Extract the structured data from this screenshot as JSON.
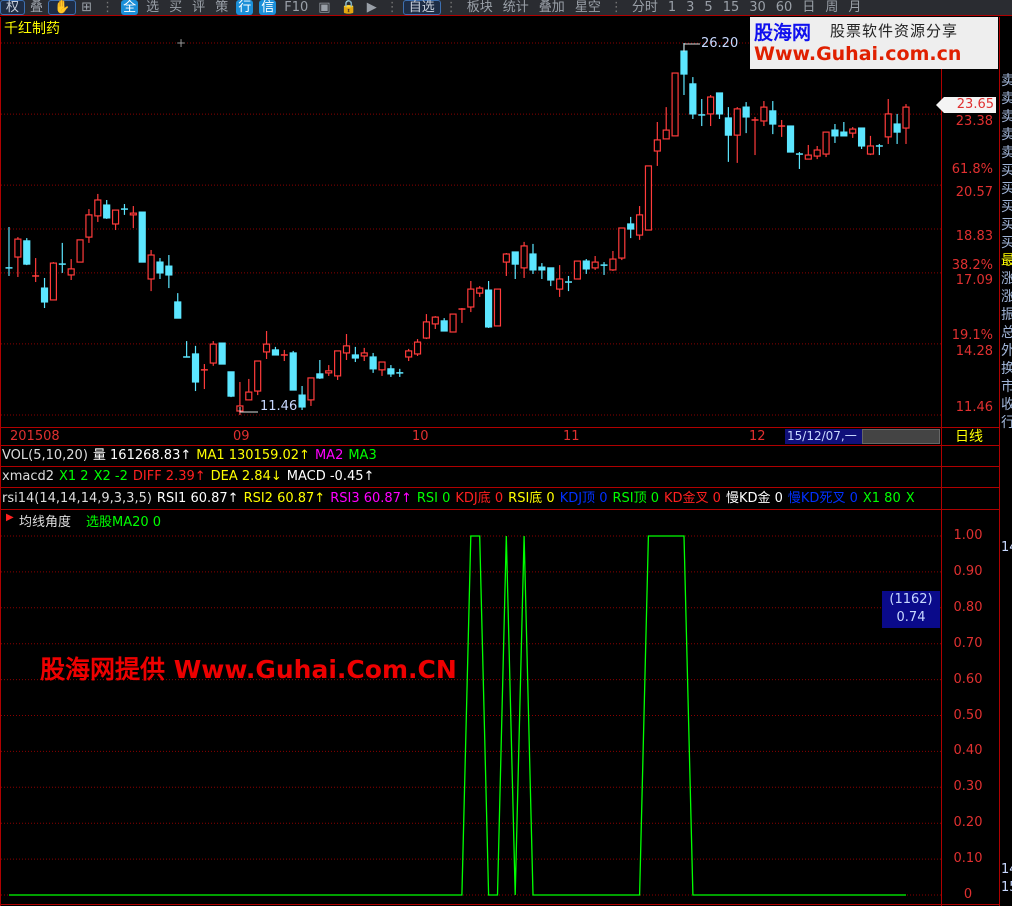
{
  "toolbar": {
    "items": [
      "权",
      "叠",
      "✋",
      "⊞",
      "全",
      "选",
      "买",
      "评",
      "策",
      "行",
      "信",
      "F10",
      "▣",
      "🔒",
      "▶",
      "自选",
      "板块",
      "统计",
      "叠加",
      "星空",
      "分时",
      "1",
      "3",
      "5",
      "15",
      "30",
      "60",
      "日",
      "周",
      "月"
    ]
  },
  "stock": {
    "name": "千红制药"
  },
  "main_chart": {
    "type": "candlestick",
    "high_label": "26.20",
    "low_label": "11.46",
    "marker": "+",
    "last_price": "23.65",
    "axis_labels": [
      {
        "text": "23.38",
        "price": 23.38
      },
      {
        "text": "61.8%",
        "price": 21.5
      },
      {
        "text": "20.57",
        "price": 20.57
      },
      {
        "text": "18.83",
        "price": 18.83
      },
      {
        "text": "38.2%",
        "price": 17.7
      },
      {
        "text": "17.09",
        "price": 17.09
      },
      {
        "text": "19.1%",
        "price": 14.9
      },
      {
        "text": "14.28",
        "price": 14.28
      },
      {
        "text": "11.46",
        "price": 11.46
      }
    ],
    "gridlines": [
      26.2,
      23.38,
      20.57,
      18.83,
      17.09,
      14.28,
      11.46
    ],
    "colors": {
      "up": "#ff3b3b",
      "down": "#5ce6ff"
    },
    "candles": [
      [
        17.29,
        18.91,
        16.97,
        17.28
      ],
      [
        17.72,
        18.51,
        16.93,
        18.43
      ],
      [
        18.36,
        18.47,
        17.4,
        17.44
      ],
      [
        16.97,
        17.68,
        16.73,
        16.97
      ],
      [
        16.49,
        16.89,
        15.7,
        15.94
      ],
      [
        16.02,
        17.52,
        16.02,
        17.48
      ],
      [
        17.44,
        18.28,
        17.09,
        17.43
      ],
      [
        17.01,
        17.64,
        16.81,
        17.25
      ],
      [
        17.52,
        18.4,
        17.52,
        18.4
      ],
      [
        18.51,
        19.62,
        18.28,
        19.39
      ],
      [
        19.35,
        20.22,
        19.11,
        19.98
      ],
      [
        19.78,
        19.98,
        19.23,
        19.27
      ],
      [
        19.03,
        19.58,
        18.79,
        19.58
      ],
      [
        19.62,
        19.82,
        19.39,
        19.61
      ],
      [
        19.39,
        19.74,
        18.87,
        19.46
      ],
      [
        19.5,
        19.5,
        17.52,
        17.52
      ],
      [
        16.85,
        18.0,
        16.37,
        17.8
      ],
      [
        17.52,
        17.68,
        16.85,
        17.09
      ],
      [
        17.36,
        17.8,
        16.49,
        17.01
      ],
      [
        15.94,
        16.29,
        15.3,
        15.3
      ],
      [
        13.76,
        14.39,
        13.76,
        13.75
      ],
      [
        13.88,
        14.2,
        12.41,
        12.77
      ],
      [
        13.25,
        13.48,
        12.49,
        13.25
      ],
      [
        13.52,
        14.39,
        13.41,
        14.27
      ],
      [
        14.31,
        14.31,
        13.48,
        13.48
      ],
      [
        13.17,
        13.17,
        12.17,
        12.21
      ],
      [
        11.62,
        12.77,
        11.46,
        11.82
      ],
      [
        12.06,
        12.89,
        12.06,
        12.37
      ],
      [
        12.41,
        13.6,
        12.25,
        13.6
      ],
      [
        13.96,
        14.79,
        13.68,
        14.27
      ],
      [
        14.04,
        14.16,
        13.84,
        13.84
      ],
      [
        13.84,
        14.04,
        13.6,
        13.84
      ],
      [
        13.92,
        14.0,
        12.45,
        12.45
      ],
      [
        12.25,
        12.61,
        11.66,
        11.78
      ],
      [
        12.06,
        12.93,
        11.82,
        12.93
      ],
      [
        13.09,
        13.64,
        12.89,
        12.93
      ],
      [
        13.13,
        13.44,
        13.01,
        13.21
      ],
      [
        13.01,
        14.0,
        12.85,
        14.0
      ],
      [
        13.92,
        14.67,
        13.64,
        14.2
      ],
      [
        13.84,
        14.16,
        13.56,
        13.72
      ],
      [
        13.8,
        14.12,
        13.6,
        13.92
      ],
      [
        13.76,
        13.92,
        13.13,
        13.29
      ],
      [
        13.25,
        13.56,
        13.01,
        13.56
      ],
      [
        13.29,
        13.44,
        12.97,
        13.09
      ],
      [
        13.13,
        13.29,
        12.97,
        13.12
      ],
      [
        13.76,
        14.08,
        13.6,
        14.0
      ],
      [
        13.88,
        14.47,
        13.8,
        14.35
      ],
      [
        14.51,
        15.46,
        14.47,
        15.15
      ],
      [
        15.07,
        15.38,
        14.87,
        15.34
      ],
      [
        15.19,
        15.3,
        14.79,
        14.79
      ],
      [
        14.75,
        15.46,
        14.75,
        15.46
      ],
      [
        15.66,
        15.7,
        15.11,
        15.66
      ],
      [
        15.74,
        16.77,
        15.54,
        16.45
      ],
      [
        16.29,
        16.57,
        16.14,
        16.49
      ],
      [
        16.41,
        16.77,
        14.91,
        14.95
      ],
      [
        14.99,
        16.45,
        14.99,
        16.45
      ],
      [
        17.52,
        17.88,
        16.97,
        17.84
      ],
      [
        17.92,
        17.92,
        16.85,
        17.44
      ],
      [
        17.29,
        18.32,
        16.89,
        18.16
      ],
      [
        17.84,
        18.24,
        17.05,
        17.21
      ],
      [
        17.32,
        17.48,
        16.85,
        17.21
      ],
      [
        17.29,
        17.29,
        16.57,
        16.81
      ],
      [
        16.45,
        17.4,
        16.14,
        16.85
      ],
      [
        16.73,
        16.97,
        16.37,
        16.72
      ],
      [
        16.85,
        17.56,
        16.85,
        17.56
      ],
      [
        17.56,
        17.64,
        17.05,
        17.25
      ],
      [
        17.29,
        17.76,
        17.21,
        17.52
      ],
      [
        17.4,
        17.52,
        17.01,
        17.39
      ],
      [
        17.21,
        17.96,
        17.17,
        17.64
      ],
      [
        17.68,
        18.87,
        17.6,
        18.87
      ],
      [
        19.03,
        19.31,
        18.47,
        18.83
      ],
      [
        18.59,
        19.74,
        18.4,
        19.39
      ],
      [
        18.79,
        21.33,
        18.79,
        21.33
      ],
      [
        21.92,
        23.07,
        21.33,
        22.36
      ],
      [
        22.4,
        23.66,
        22.4,
        22.75
      ],
      [
        22.52,
        25.01,
        22.52,
        25.01
      ],
      [
        25.88,
        26.2,
        24.14,
        24.97
      ],
      [
        24.58,
        24.85,
        23.19,
        23.39
      ],
      [
        23.35,
        23.98,
        22.91,
        23.34
      ],
      [
        23.39,
        24.14,
        22.91,
        24.06
      ],
      [
        24.22,
        24.22,
        23.19,
        23.39
      ],
      [
        23.23,
        23.66,
        21.49,
        22.55
      ],
      [
        22.55,
        23.66,
        21.45,
        23.59
      ],
      [
        23.66,
        23.86,
        22.63,
        23.27
      ],
      [
        23.15,
        23.27,
        21.76,
        23.15
      ],
      [
        23.11,
        23.9,
        22.91,
        23.66
      ],
      [
        23.51,
        23.9,
        22.59,
        22.99
      ],
      [
        22.91,
        23.15,
        22.48,
        22.91
      ],
      [
        22.91,
        22.91,
        21.88,
        21.88
      ],
      [
        21.8,
        21.88,
        21.21,
        21.79
      ],
      [
        21.6,
        22.16,
        21.6,
        21.76
      ],
      [
        21.72,
        22.12,
        21.6,
        21.96
      ],
      [
        21.8,
        22.67,
        21.68,
        22.67
      ],
      [
        22.75,
        22.99,
        22.24,
        22.52
      ],
      [
        22.67,
        23.07,
        22.52,
        22.52
      ],
      [
        22.63,
        22.87,
        22.44,
        22.79
      ],
      [
        22.83,
        22.83,
        22.0,
        22.12
      ],
      [
        21.8,
        22.52,
        21.76,
        22.12
      ],
      [
        22.12,
        22.2,
        21.76,
        22.11
      ],
      [
        22.48,
        23.98,
        22.2,
        23.39
      ],
      [
        22.99,
        23.39,
        22.2,
        22.67
      ],
      [
        22.83,
        23.78,
        22.2,
        23.66
      ]
    ]
  },
  "date_axis": {
    "labels": [
      "2015",
      "08",
      "09",
      "10",
      "11",
      "12"
    ],
    "cursor_date": "15/12/07,一",
    "period": "日线"
  },
  "indicators": {
    "vol": {
      "name": "VOL(5,10,20)",
      "items": [
        {
          "t": "量 161268.83↑",
          "c": "#ffffff"
        },
        {
          "t": "MA1 130159.02↑",
          "c": "#ffff00"
        },
        {
          "t": "MA2",
          "c": "#ff00ff"
        },
        {
          "t": "MA3",
          "c": "#00ff00"
        }
      ]
    },
    "xmacd2": {
      "name": "xmacd2",
      "items": [
        {
          "t": "X1 2",
          "c": "#00ff00"
        },
        {
          "t": "X2 -2",
          "c": "#00ff00"
        },
        {
          "t": "DIFF 2.39↑",
          "c": "#ff2020"
        },
        {
          "t": "DEA 2.84↓",
          "c": "#ffff00"
        },
        {
          "t": "MACD -0.45↑",
          "c": "#ffffff"
        }
      ]
    },
    "rsi14": {
      "name": "rsi14(14,14,14,9,3,3,5)",
      "items": [
        {
          "t": "RSI1 60.87↑",
          "c": "#ffffff"
        },
        {
          "t": "RSI2 60.87↑",
          "c": "#ffff00"
        },
        {
          "t": "RSI3 60.87↑",
          "c": "#ff00ff"
        },
        {
          "t": "RSI 0",
          "c": "#00ff00"
        },
        {
          "t": "KDJ底 0",
          "c": "#ff2020"
        },
        {
          "t": "RSI底 0",
          "c": "#ffff00"
        },
        {
          "t": "KDJ顶 0",
          "c": "#0030ff"
        },
        {
          "t": "RSI顶 0",
          "c": "#00ff00"
        },
        {
          "t": "KD金叉 0",
          "c": "#ff2020"
        },
        {
          "t": "慢KD金 0",
          "c": "#ffffff"
        },
        {
          "t": "慢KD死叉 0",
          "c": "#0030ff"
        },
        {
          "t": "X1 80",
          "c": "#00ff00"
        },
        {
          "t": "X",
          "c": "#00ff00"
        }
      ]
    }
  },
  "bottom_panel": {
    "title": "均线角度",
    "series_label": "选股MA20 0",
    "cursor_index": "(1162)",
    "cursor_value": "0.74",
    "right_col": [
      "14",
      "14",
      "15"
    ],
    "chart_data": {
      "type": "line",
      "ylim": [
        0,
        1
      ],
      "yticks": [
        "1.00",
        "0.90",
        "0.80",
        "0.70",
        "0.60",
        "0.50",
        "0.40",
        "0.30",
        "0.20",
        "0.10",
        "0"
      ],
      "color": "#00ff00",
      "values": [
        0,
        0,
        0,
        0,
        0,
        0,
        0,
        0,
        0,
        0,
        0,
        0,
        0,
        0,
        0,
        0,
        0,
        0,
        0,
        0,
        0,
        0,
        0,
        0,
        0,
        0,
        0,
        0,
        0,
        0,
        0,
        0,
        0,
        0,
        0,
        0,
        0,
        0,
        0,
        0,
        0,
        0,
        0,
        0,
        0,
        0,
        0,
        0,
        0,
        0,
        0,
        0,
        1,
        1,
        0,
        0,
        1,
        0,
        1,
        0,
        0,
        0,
        0,
        0,
        0,
        0,
        0,
        0,
        0,
        0,
        0,
        0,
        1,
        1,
        1,
        1,
        1,
        0,
        0,
        0,
        0,
        0,
        0,
        0,
        0,
        0,
        0,
        0,
        0,
        0,
        0,
        0,
        0,
        0,
        0,
        0,
        0,
        0,
        0,
        0,
        0,
        0
      ]
    }
  },
  "right_column": [
    "卖",
    "卖",
    "卖",
    "卖",
    "卖",
    "买",
    "买",
    "买",
    "买",
    "买",
    "最",
    "涨",
    "涨",
    "振",
    "总",
    "外",
    "换",
    "市",
    "收",
    "行"
  ],
  "watermark": {
    "logo": "股海网",
    "tagline": "股票软件资源分享",
    "url": "Www.Guhai.com.cn",
    "overlay": "股海网提供 Www.Guhai.Com.CN"
  }
}
